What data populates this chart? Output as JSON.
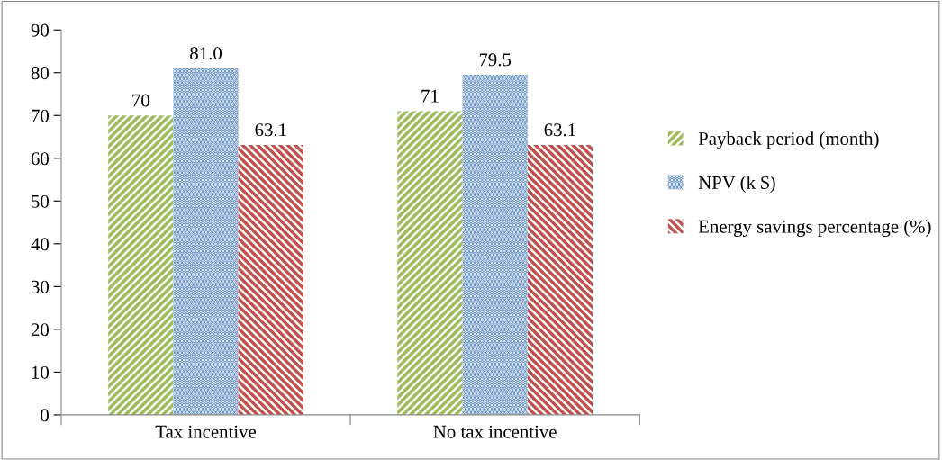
{
  "chart_data": {
    "type": "bar",
    "categories": [
      "Tax incentive",
      "No tax incentive"
    ],
    "series": [
      {
        "name": "Payback period (month)",
        "color": "#9bbb59",
        "values": [
          70,
          71
        ],
        "value_labels": [
          "70",
          "71"
        ]
      },
      {
        "name": "NPV (k $)",
        "color": "#4f81bd",
        "values": [
          81.0,
          79.5
        ],
        "value_labels": [
          "81.0",
          "79.5"
        ]
      },
      {
        "name": "Energy savings percentage (%)",
        "color": "#c0504d",
        "values": [
          63.1,
          63.1
        ],
        "value_labels": [
          "63.1",
          "63.1"
        ]
      }
    ],
    "ylim": [
      0,
      90
    ],
    "yticks": [
      0,
      10,
      20,
      30,
      40,
      50,
      60,
      70,
      80,
      90
    ],
    "grid": false,
    "legend": "right"
  }
}
